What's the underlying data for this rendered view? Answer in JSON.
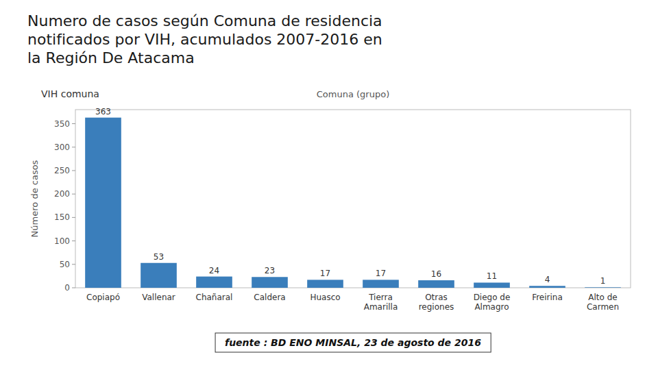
{
  "chart_data": {
    "type": "bar",
    "title": "Numero de casos según Comuna de residencia\nnotificados por VIH, acumulados 2007-2016 en\nla Región De Atacama",
    "subtitle": "VIH comuna",
    "x_label": "Comuna (grupo)",
    "y_label": "Número de casos",
    "categories": [
      "Copiapó",
      "Vallenar",
      "Chañaral",
      "Caldera",
      "Huasco",
      "Tierra\nAmarilla",
      "Otras\nregiones",
      "Diego de\nAlmagro",
      "Freirina",
      "Alto de\nCarmen"
    ],
    "values": [
      363,
      53,
      24,
      23,
      17,
      17,
      16,
      11,
      4,
      1
    ],
    "color": "#3A7EBB",
    "ylim": [
      0,
      380
    ],
    "yticks": [
      0,
      50,
      100,
      150,
      200,
      250,
      300,
      350
    ],
    "grid": false,
    "data_labels": true,
    "annotations": [
      "fuente : BD ENO MINSAL, 23 de agosto de 2016"
    ]
  }
}
